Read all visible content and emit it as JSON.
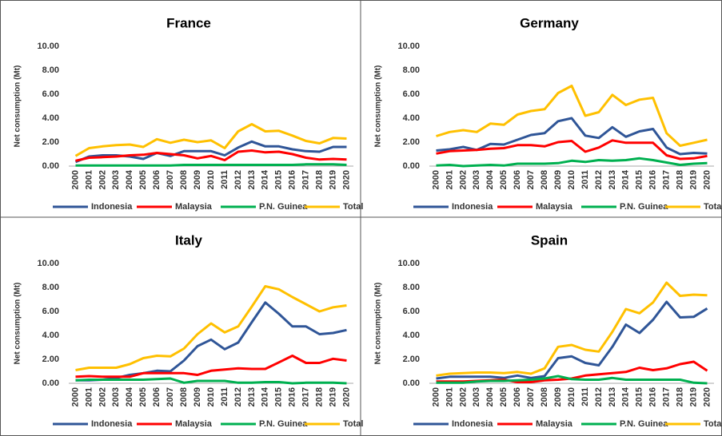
{
  "chart_data": [
    {
      "type": "line",
      "title": "France",
      "y_label": "Net consumption (Mt)",
      "categories": [
        "2000",
        "2001",
        "2002",
        "2003",
        "2004",
        "2005",
        "2006",
        "2007",
        "2008",
        "2009",
        "2010",
        "2011",
        "2012",
        "2013",
        "2014",
        "2015",
        "2016",
        "2017",
        "2018",
        "2019",
        "2020"
      ],
      "ylim": [
        0,
        10
      ],
      "yticks": [
        {
          "value": 0,
          "label": "0.00"
        },
        {
          "value": 2,
          "label": "2.00"
        },
        {
          "value": 4,
          "label": "4.00"
        },
        {
          "value": 6,
          "label": "6.00"
        },
        {
          "value": 8,
          "label": "8.00"
        },
        {
          "value": 10,
          "label": "10.00"
        }
      ],
      "grid": false,
      "legend": "bottom",
      "series": [
        {
          "name": "Indonesia",
          "color": "#2f5597",
          "values": [
            0.35,
            0.8,
            0.9,
            0.9,
            0.8,
            0.6,
            1.1,
            0.85,
            1.25,
            1.25,
            1.25,
            0.9,
            1.55,
            2.05,
            1.65,
            1.65,
            1.4,
            1.25,
            1.2,
            1.6,
            1.6
          ]
        },
        {
          "name": "Malaysia",
          "color": "#ff0000",
          "values": [
            0.45,
            0.7,
            0.75,
            0.8,
            0.9,
            0.95,
            1.1,
            1.0,
            0.9,
            0.65,
            0.85,
            0.5,
            1.2,
            1.3,
            1.15,
            1.2,
            1.0,
            0.7,
            0.55,
            0.6,
            0.55
          ]
        },
        {
          "name": "P.N. Guinea",
          "color": "#00b050",
          "values": [
            0.05,
            0.05,
            0.05,
            0.05,
            0.05,
            0.05,
            0.05,
            0.05,
            0.1,
            0.1,
            0.1,
            0.1,
            0.1,
            0.1,
            0.1,
            0.1,
            0.1,
            0.15,
            0.15,
            0.15,
            0.1
          ]
        },
        {
          "name": "Total",
          "color": "#ffc000",
          "values": [
            0.85,
            1.5,
            1.65,
            1.75,
            1.8,
            1.6,
            2.25,
            1.95,
            2.2,
            2.0,
            2.15,
            1.5,
            2.9,
            3.5,
            2.9,
            2.95,
            2.55,
            2.1,
            1.9,
            2.35,
            2.3
          ]
        }
      ]
    },
    {
      "type": "line",
      "title": "Germany",
      "y_label": "Net consumption (Mt)",
      "categories": [
        "2000",
        "2001",
        "2002",
        "2003",
        "2004",
        "2005",
        "2006",
        "2007",
        "2008",
        "2009",
        "2010",
        "2011",
        "2012",
        "2013",
        "2014",
        "2015",
        "2016",
        "2017",
        "2018",
        "2019",
        "2020"
      ],
      "ylim": [
        0,
        10
      ],
      "yticks": [
        {
          "value": 0,
          "label": "0.00"
        },
        {
          "value": 2,
          "label": "2.00"
        },
        {
          "value": 4,
          "label": "4.00"
        },
        {
          "value": 6,
          "label": "6.00"
        },
        {
          "value": 8,
          "label": "8.00"
        },
        {
          "value": 10,
          "label": "10.00"
        }
      ],
      "grid": false,
      "legend": "bottom",
      "series": [
        {
          "name": "Indonesia",
          "color": "#2f5597",
          "values": [
            1.3,
            1.4,
            1.6,
            1.35,
            1.85,
            1.8,
            2.2,
            2.6,
            2.75,
            3.75,
            4.0,
            2.55,
            2.35,
            3.25,
            2.45,
            2.9,
            3.1,
            1.55,
            1.0,
            1.1,
            1.05
          ]
        },
        {
          "name": "Malaysia",
          "color": "#ff0000",
          "values": [
            1.05,
            1.25,
            1.3,
            1.35,
            1.45,
            1.5,
            1.75,
            1.75,
            1.65,
            2.0,
            2.1,
            1.2,
            1.55,
            2.15,
            1.95,
            1.95,
            1.95,
            0.9,
            0.6,
            0.65,
            0.85
          ]
        },
        {
          "name": "P.N. Guinea",
          "color": "#00b050",
          "values": [
            0.05,
            0.1,
            0.0,
            0.05,
            0.1,
            0.05,
            0.2,
            0.2,
            0.2,
            0.25,
            0.45,
            0.35,
            0.5,
            0.45,
            0.5,
            0.65,
            0.5,
            0.3,
            0.1,
            0.2,
            0.25
          ]
        },
        {
          "name": "Total",
          "color": "#ffc000",
          "values": [
            2.5,
            2.85,
            3.0,
            2.85,
            3.55,
            3.45,
            4.3,
            4.6,
            4.75,
            6.1,
            6.7,
            4.2,
            4.5,
            5.95,
            5.1,
            5.55,
            5.7,
            2.75,
            1.7,
            1.95,
            2.2
          ]
        }
      ]
    },
    {
      "type": "line",
      "title": "Italy",
      "y_label": "Net consumption (Mt)",
      "categories": [
        "2000",
        "2001",
        "2002",
        "2003",
        "2004",
        "2005",
        "2006",
        "2007",
        "2008",
        "2009",
        "2010",
        "2011",
        "2012",
        "2013",
        "2014",
        "2015",
        "2016",
        "2017",
        "2018",
        "2019",
        "2020"
      ],
      "ylim": [
        0,
        10
      ],
      "yticks": [
        {
          "value": 0,
          "label": "0.00"
        },
        {
          "value": 2,
          "label": "2.00"
        },
        {
          "value": 4,
          "label": "4.00"
        },
        {
          "value": 6,
          "label": "6.00"
        },
        {
          "value": 8,
          "label": "8.00"
        },
        {
          "value": 10,
          "label": "10.00"
        }
      ],
      "grid": false,
      "legend": "bottom",
      "series": [
        {
          "name": "Indonesia",
          "color": "#2f5597",
          "values": [
            0.25,
            0.25,
            0.3,
            0.45,
            0.7,
            0.85,
            1.05,
            1.0,
            1.9,
            3.1,
            3.65,
            2.85,
            3.4,
            5.1,
            6.75,
            5.8,
            4.75,
            4.75,
            4.1,
            4.2,
            4.45
          ]
        },
        {
          "name": "Malaysia",
          "color": "#ff0000",
          "values": [
            0.55,
            0.6,
            0.55,
            0.55,
            0.55,
            0.85,
            0.85,
            0.85,
            0.85,
            0.7,
            1.05,
            1.15,
            1.25,
            1.2,
            1.2,
            1.75,
            2.3,
            1.7,
            1.7,
            2.05,
            1.9
          ]
        },
        {
          "name": "P.N. Guinea",
          "color": "#00b050",
          "values": [
            0.25,
            0.3,
            0.3,
            0.3,
            0.3,
            0.3,
            0.35,
            0.4,
            0.05,
            0.2,
            0.2,
            0.2,
            0.05,
            0.05,
            0.1,
            0.1,
            0.0,
            0.05,
            0.05,
            0.05,
            0.0
          ]
        },
        {
          "name": "Total",
          "color": "#ffc000",
          "values": [
            1.1,
            1.3,
            1.3,
            1.3,
            1.6,
            2.1,
            2.3,
            2.25,
            2.9,
            4.1,
            5.0,
            4.25,
            4.75,
            6.4,
            8.1,
            7.85,
            7.2,
            6.6,
            6.0,
            6.35,
            6.5
          ]
        }
      ]
    },
    {
      "type": "line",
      "title": "Spain",
      "y_label": "Net consumption (Mt)",
      "categories": [
        "2000",
        "2001",
        "2002",
        "2003",
        "2004",
        "2005",
        "2006",
        "2007",
        "2008",
        "2009",
        "2010",
        "2011",
        "2012",
        "2013",
        "2014",
        "2015",
        "2016",
        "2017",
        "2018",
        "2019",
        "2020"
      ],
      "ylim": [
        0,
        10
      ],
      "yticks": [
        {
          "value": 0,
          "label": "0.00"
        },
        {
          "value": 2,
          "label": "2.00"
        },
        {
          "value": 4,
          "label": "4.00"
        },
        {
          "value": 6,
          "label": "6.00"
        },
        {
          "value": 8,
          "label": "8.00"
        },
        {
          "value": 10,
          "label": "10.00"
        }
      ],
      "grid": false,
      "legend": "bottom",
      "series": [
        {
          "name": "Indonesia",
          "color": "#2f5597",
          "values": [
            0.4,
            0.55,
            0.55,
            0.55,
            0.55,
            0.45,
            0.65,
            0.45,
            0.6,
            2.1,
            2.25,
            1.7,
            1.5,
            3.05,
            4.9,
            4.2,
            5.3,
            6.8,
            5.5,
            5.55,
            6.25
          ]
        },
        {
          "name": "Malaysia",
          "color": "#ff0000",
          "values": [
            0.15,
            0.15,
            0.15,
            0.2,
            0.25,
            0.3,
            0.1,
            0.1,
            0.25,
            0.3,
            0.4,
            0.65,
            0.75,
            0.85,
            0.95,
            1.3,
            1.1,
            1.25,
            1.6,
            1.8,
            1.05
          ]
        },
        {
          "name": "P.N. Guinea",
          "color": "#00b050",
          "values": [
            0.05,
            0.05,
            0.05,
            0.15,
            0.2,
            0.2,
            0.25,
            0.3,
            0.4,
            0.6,
            0.35,
            0.3,
            0.3,
            0.45,
            0.3,
            0.3,
            0.3,
            0.3,
            0.3,
            0.05,
            0.0
          ]
        },
        {
          "name": "Total",
          "color": "#ffc000",
          "values": [
            0.65,
            0.8,
            0.85,
            0.9,
            0.9,
            0.85,
            0.95,
            0.8,
            1.25,
            3.05,
            3.2,
            2.8,
            2.65,
            4.3,
            6.2,
            5.85,
            6.75,
            8.4,
            7.3,
            7.4,
            7.35
          ]
        }
      ]
    }
  ]
}
